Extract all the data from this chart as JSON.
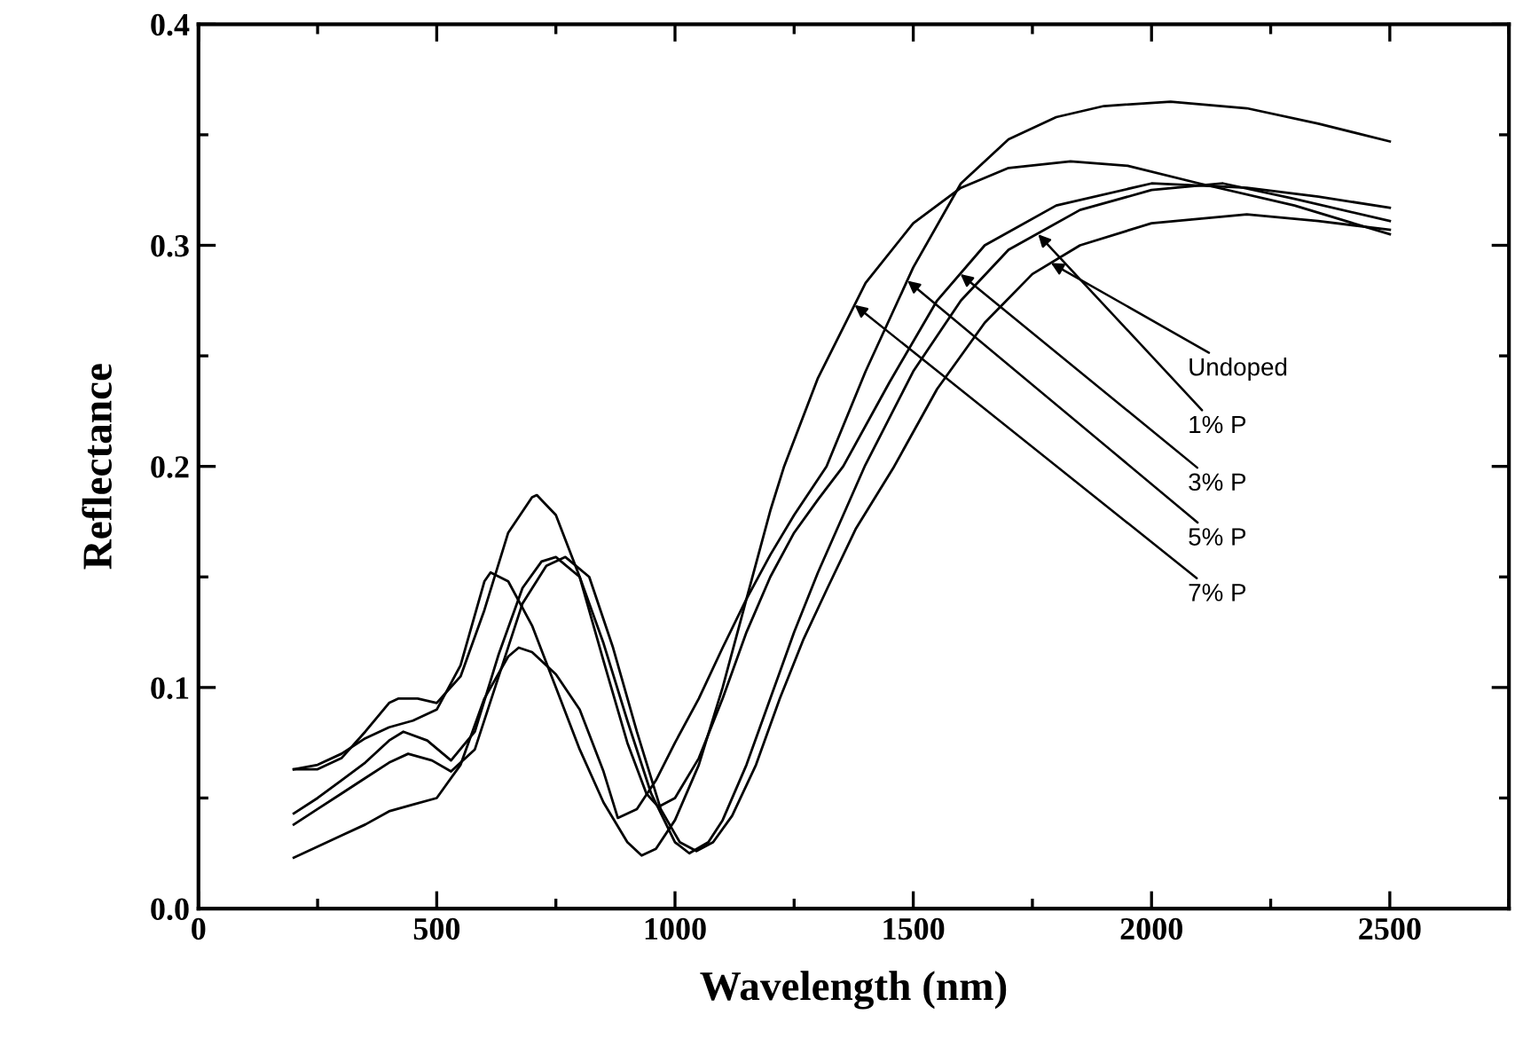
{
  "chart_data": {
    "type": "line",
    "xlabel": "Wavelength (nm)",
    "ylabel": "Reflectance",
    "xlim": [
      0,
      2750
    ],
    "xticks": [
      0,
      500,
      1000,
      1500,
      2000,
      2500
    ],
    "ylim": [
      0.0,
      0.4
    ],
    "yticks": [
      {
        "value": 0,
        "label": "0.0"
      },
      0.1,
      0.2,
      0.3,
      0.4
    ],
    "annotations": [
      {
        "text": "Undoped",
        "x": 1789,
        "y": 0.292
      },
      {
        "text": "1% P",
        "x": 1762,
        "y": 0.305
      },
      {
        "text": "3% P",
        "x": 1599,
        "y": 0.287
      },
      {
        "text": "5% P",
        "x": 1488,
        "y": 0.284
      },
      {
        "text": "7% P",
        "x": 1377,
        "y": 0.273
      }
    ],
    "grid": false,
    "legend": false,
    "marker": "none",
    "line_style": "solid",
    "series": [
      {
        "color": "#000000",
        "x": [
          200,
          250,
          300,
          350,
          400,
          440,
          490,
          530,
          580,
          630,
          680,
          730,
          770,
          820,
          870,
          920,
          970,
          1010,
          1045,
          1080,
          1120,
          1170,
          1220,
          1270,
          1320,
          1380,
          1460,
          1550,
          1650,
          1750,
          1850,
          2000,
          2200,
          2350,
          2500
        ],
        "values": [
          0.038,
          0.045,
          0.052,
          0.059,
          0.066,
          0.07,
          0.067,
          0.062,
          0.072,
          0.105,
          0.138,
          0.155,
          0.159,
          0.15,
          0.118,
          0.08,
          0.045,
          0.03,
          0.026,
          0.03,
          0.042,
          0.065,
          0.095,
          0.122,
          0.145,
          0.172,
          0.2,
          0.235,
          0.265,
          0.287,
          0.3,
          0.31,
          0.314,
          0.311,
          0.307
        ]
      },
      {
        "color": "#000000",
        "x": [
          200,
          250,
          300,
          350,
          400,
          430,
          480,
          530,
          580,
          630,
          680,
          720,
          750,
          800,
          850,
          900,
          950,
          1000,
          1030,
          1070,
          1100,
          1150,
          1200,
          1250,
          1300,
          1398,
          1500,
          1600,
          1700,
          1850,
          2000,
          2150,
          2300,
          2500
        ],
        "values": [
          0.043,
          0.05,
          0.058,
          0.066,
          0.076,
          0.08,
          0.076,
          0.067,
          0.08,
          0.115,
          0.145,
          0.157,
          0.159,
          0.15,
          0.12,
          0.085,
          0.052,
          0.03,
          0.025,
          0.03,
          0.04,
          0.065,
          0.095,
          0.125,
          0.152,
          0.2,
          0.243,
          0.275,
          0.298,
          0.316,
          0.325,
          0.328,
          0.321,
          0.311
        ]
      },
      {
        "color": "#000000",
        "x": [
          200,
          250,
          300,
          350,
          400,
          420,
          460,
          500,
          550,
          600,
          650,
          700,
          710,
          750,
          800,
          850,
          900,
          940,
          965,
          1000,
          1050,
          1100,
          1150,
          1200,
          1250,
          1300,
          1353,
          1450,
          1550,
          1650,
          1800,
          2000,
          2200,
          2350,
          2500
        ],
        "values": [
          0.063,
          0.063,
          0.068,
          0.08,
          0.093,
          0.095,
          0.095,
          0.093,
          0.105,
          0.135,
          0.17,
          0.186,
          0.187,
          0.178,
          0.15,
          0.112,
          0.075,
          0.052,
          0.046,
          0.05,
          0.068,
          0.095,
          0.125,
          0.15,
          0.17,
          0.185,
          0.2,
          0.238,
          0.275,
          0.3,
          0.318,
          0.328,
          0.326,
          0.322,
          0.317
        ]
      },
      {
        "color": "#000000",
        "x": [
          200,
          250,
          300,
          350,
          400,
          450,
          500,
          550,
          600,
          650,
          672,
          700,
          750,
          800,
          850,
          880,
          920,
          960,
          1000,
          1050,
          1100,
          1150,
          1200,
          1250,
          1318,
          1400,
          1500,
          1600,
          1700,
          1800,
          1900,
          2040,
          2200,
          2350,
          2500
        ],
        "values": [
          0.023,
          0.028,
          0.033,
          0.038,
          0.044,
          0.047,
          0.05,
          0.065,
          0.095,
          0.114,
          0.118,
          0.116,
          0.106,
          0.09,
          0.062,
          0.041,
          0.045,
          0.058,
          0.075,
          0.095,
          0.118,
          0.14,
          0.16,
          0.178,
          0.2,
          0.243,
          0.29,
          0.328,
          0.348,
          0.358,
          0.363,
          0.365,
          0.362,
          0.355,
          0.347
        ]
      },
      {
        "color": "#000000",
        "x": [
          200,
          250,
          300,
          350,
          400,
          450,
          500,
          550,
          600,
          613,
          650,
          700,
          750,
          800,
          850,
          900,
          930,
          960,
          1000,
          1050,
          1100,
          1150,
          1200,
          1229,
          1300,
          1400,
          1500,
          1600,
          1700,
          1830,
          1950,
          2100,
          2300,
          2500
        ],
        "values": [
          0.063,
          0.065,
          0.07,
          0.077,
          0.082,
          0.085,
          0.09,
          0.11,
          0.148,
          0.152,
          0.148,
          0.128,
          0.1,
          0.072,
          0.048,
          0.03,
          0.024,
          0.027,
          0.04,
          0.065,
          0.1,
          0.14,
          0.18,
          0.2,
          0.24,
          0.283,
          0.31,
          0.326,
          0.335,
          0.338,
          0.336,
          0.328,
          0.318,
          0.305
        ]
      }
    ]
  }
}
